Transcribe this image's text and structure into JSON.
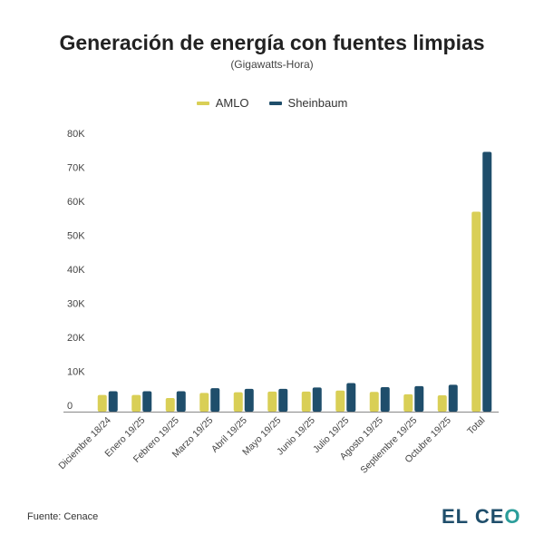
{
  "chart_data": {
    "type": "bar",
    "title": "Generación de energía con fuentes limpias",
    "subtitle": "(Gigawatts-Hora)",
    "categories": [
      "Diciembre 18/24",
      "Enero 19/25",
      "Febrero 19/25",
      "Marzo 19/25",
      "Abril 19/25",
      "Mayo 19/25",
      "Junio 19/25",
      "Julio 19/25",
      "Agosto 19/25",
      "Septiembre 19/25",
      "Octubre 19/25",
      "Total"
    ],
    "series": [
      {
        "name": "AMLO",
        "color": "#d9cf56",
        "values": [
          4900,
          4900,
          4000,
          5500,
          5700,
          5900,
          5900,
          6200,
          5800,
          5100,
          4800,
          58800
        ]
      },
      {
        "name": "Sheinbaum",
        "color": "#1f4e6b",
        "values": [
          6000,
          6000,
          6000,
          6900,
          6700,
          6700,
          7100,
          8400,
          7200,
          7500,
          7900,
          76400
        ]
      }
    ],
    "ylim": [
      0,
      80000
    ],
    "yticks": [
      0,
      10000,
      20000,
      30000,
      40000,
      50000,
      60000,
      70000,
      80000
    ],
    "ytick_labels": [
      "0",
      "10K",
      "20K",
      "30K",
      "40K",
      "50K",
      "60K",
      "70K",
      "80K"
    ],
    "grid": false,
    "legend_position": "top"
  },
  "footer": {
    "source": "Fuente: Cenace",
    "logo": "EL CEO"
  }
}
